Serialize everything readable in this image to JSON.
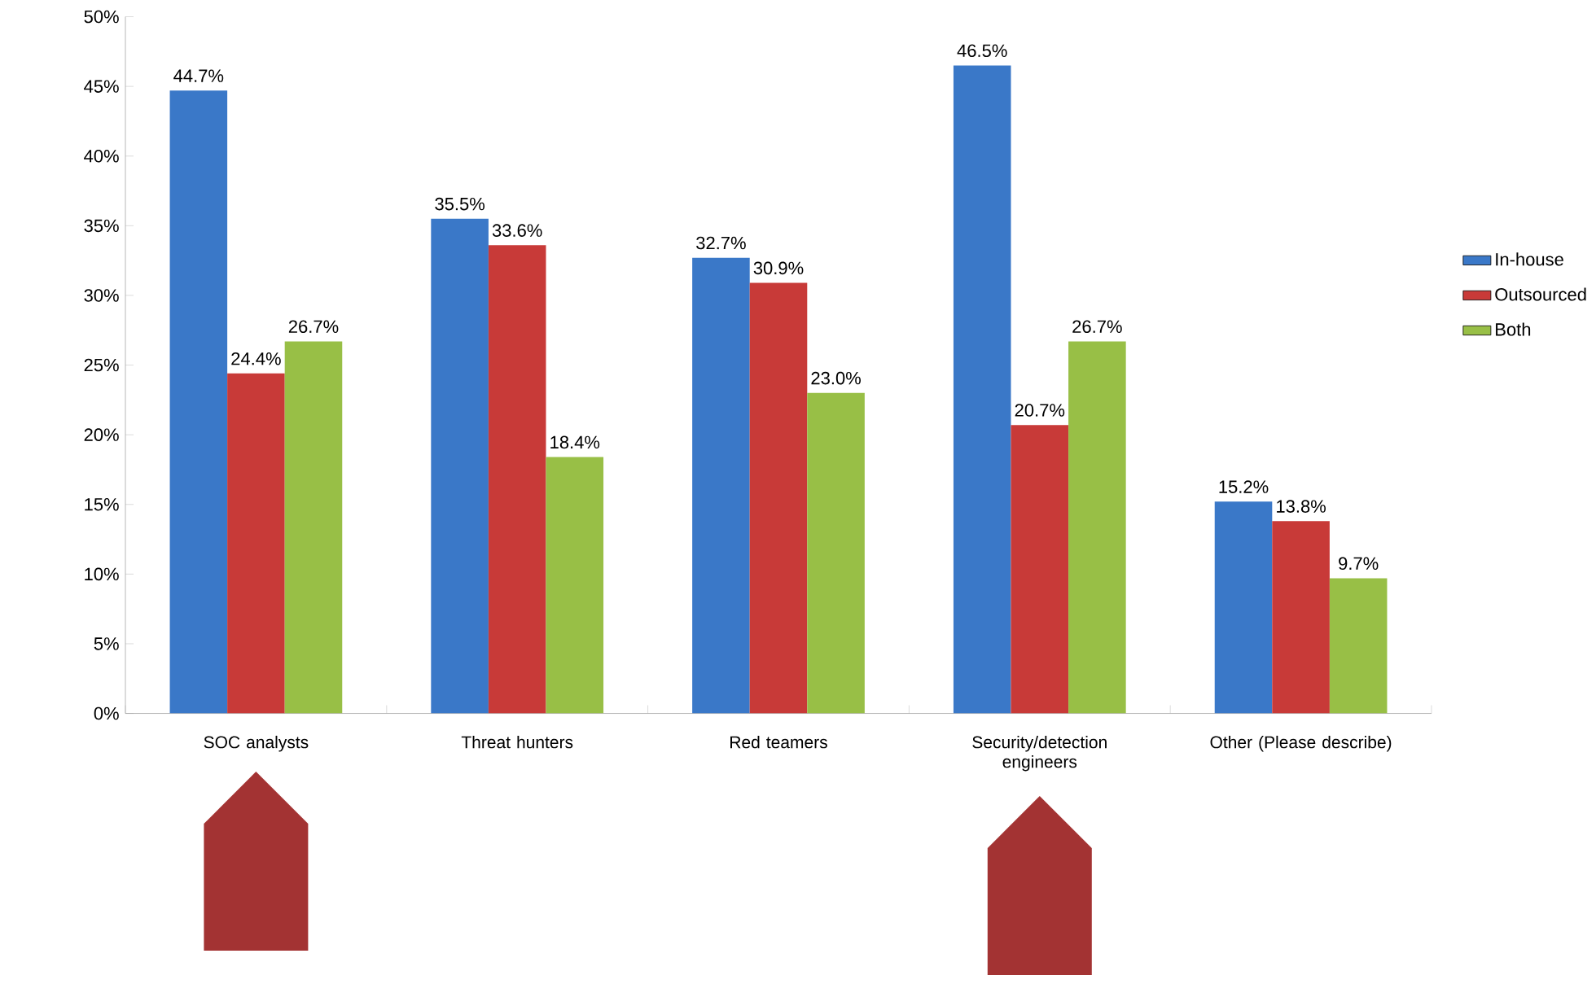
{
  "chart_data": {
    "type": "bar",
    "categories": [
      "SOC analysts",
      "Threat hunters",
      "Red teamers",
      "Security/detection engineers",
      "Other (Please describe)"
    ],
    "series": [
      {
        "name": "In-house",
        "color": "#3a78c8",
        "values": [
          44.7,
          35.5,
          32.7,
          46.5,
          15.2
        ],
        "value_labels": [
          "44.7%",
          "35.5%",
          "32.7%",
          "46.5%",
          "15.2%"
        ]
      },
      {
        "name": "Outsourced",
        "color": "#c83a38",
        "values": [
          24.4,
          33.6,
          30.9,
          20.7,
          13.8
        ],
        "value_labels": [
          "24.4%",
          "33.6%",
          "30.9%",
          "20.7%",
          "13.8%"
        ]
      },
      {
        "name": "Both",
        "color": "#98bf46",
        "values": [
          26.7,
          18.4,
          23.0,
          26.7,
          9.7
        ],
        "value_labels": [
          "26.7%",
          "18.4%",
          "23.0%",
          "26.7%",
          "9.7%"
        ]
      }
    ],
    "ylim": [
      0,
      50
    ],
    "yticks": [
      {
        "value": 0,
        "label": "0%"
      },
      {
        "value": 5,
        "label": "5%"
      },
      {
        "value": 10,
        "label": "10%"
      },
      {
        "value": 15,
        "label": "15%"
      },
      {
        "value": 20,
        "label": "20%"
      },
      {
        "value": 25,
        "label": "25%"
      },
      {
        "value": 30,
        "label": "30%"
      },
      {
        "value": 35,
        "label": "35%"
      },
      {
        "value": 40,
        "label": "40%"
      },
      {
        "value": 45,
        "label": "45%"
      },
      {
        "value": 50,
        "label": "50%"
      }
    ],
    "legend": "right",
    "grid": false
  }
}
